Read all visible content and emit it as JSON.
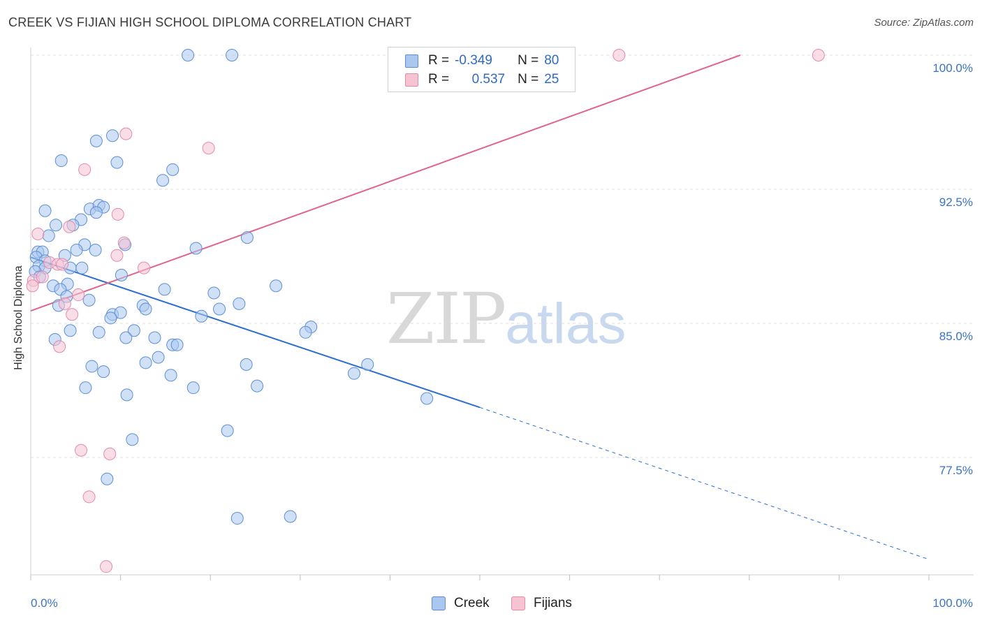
{
  "header": {
    "title": "CREEK VS FIJIAN HIGH SCHOOL DIPLOMA CORRELATION CHART",
    "source": "Source: ZipAtlas.com"
  },
  "watermark": {
    "part1": "ZIP",
    "part2": "atlas"
  },
  "legend": {
    "creek": {
      "r_label": "R =",
      "r_value": "-0.349",
      "n_label": "N =",
      "n_value": "80"
    },
    "fijians": {
      "r_label": "R =",
      "r_value": "0.537",
      "n_label": "N =",
      "n_value": "25"
    }
  },
  "bottom_legend": {
    "creek": "Creek",
    "fijians": "Fijians"
  },
  "colors": {
    "creek_fill": "#a9c7ef",
    "creek_stroke": "#5b8fd6",
    "creek_line": "#2a6fd0",
    "fijian_fill": "#f6c3d3",
    "fijian_stroke": "#e68aa8",
    "fijian_line": "#e0648c",
    "grid": "#dddddd",
    "axis_text": "#3a73c8"
  },
  "chart_data": {
    "type": "scatter",
    "title": "CREEK VS FIJIAN HIGH SCHOOL DIPLOMA CORRELATION CHART",
    "xlabel": "",
    "ylabel": "High School Diploma",
    "xlim": [
      0,
      100
    ],
    "ylim": [
      71.2,
      100.7
    ],
    "x_tick_labels": [
      "0.0%",
      "100.0%"
    ],
    "y_ticks": [
      77.5,
      85.0,
      92.5,
      100.0
    ],
    "y_tick_labels": [
      "77.5%",
      "85.0%",
      "92.5%",
      "100.0%"
    ],
    "grid": true,
    "legend_position": "top-center",
    "series": [
      {
        "name": "Creek",
        "r": -0.349,
        "n": 80,
        "trend": {
          "x0": 0,
          "y0": 88.7,
          "x1": 50,
          "y1": 80.3,
          "dashed_to_x": 100,
          "dashed_to_y": 71.8
        },
        "points": [
          [
            17.5,
            100.0
          ],
          [
            22.4,
            100.0
          ],
          [
            7.3,
            95.2
          ],
          [
            9.1,
            95.5
          ],
          [
            3.4,
            94.1
          ],
          [
            9.6,
            94.0
          ],
          [
            15.8,
            93.6
          ],
          [
            14.7,
            93.0
          ],
          [
            1.6,
            91.3
          ],
          [
            6.6,
            91.4
          ],
          [
            7.6,
            91.6
          ],
          [
            8.1,
            91.5
          ],
          [
            7.3,
            91.2
          ],
          [
            5.6,
            90.8
          ],
          [
            2.8,
            90.5
          ],
          [
            4.7,
            90.5
          ],
          [
            2.0,
            89.9
          ],
          [
            24.1,
            89.8
          ],
          [
            6.0,
            89.4
          ],
          [
            10.5,
            89.4
          ],
          [
            18.4,
            89.2
          ],
          [
            5.1,
            89.1
          ],
          [
            7.2,
            89.1
          ],
          [
            0.8,
            89.0
          ],
          [
            1.3,
            89.0
          ],
          [
            3.8,
            88.8
          ],
          [
            0.6,
            88.7
          ],
          [
            1.6,
            88.5
          ],
          [
            0.9,
            88.2
          ],
          [
            1.6,
            88.1
          ],
          [
            4.4,
            88.1
          ],
          [
            5.7,
            88.1
          ],
          [
            0.5,
            87.9
          ],
          [
            1.0,
            87.6
          ],
          [
            10.1,
            87.7
          ],
          [
            2.5,
            87.1
          ],
          [
            4.1,
            87.2
          ],
          [
            27.3,
            87.1
          ],
          [
            3.3,
            86.9
          ],
          [
            14.9,
            86.9
          ],
          [
            20.4,
            86.7
          ],
          [
            4.0,
            86.5
          ],
          [
            6.5,
            86.3
          ],
          [
            3.1,
            86.0
          ],
          [
            12.5,
            86.0
          ],
          [
            23.2,
            86.1
          ],
          [
            12.8,
            85.8
          ],
          [
            21.0,
            85.8
          ],
          [
            9.1,
            85.5
          ],
          [
            10.0,
            85.6
          ],
          [
            8.9,
            85.3
          ],
          [
            19.0,
            85.4
          ],
          [
            4.4,
            84.6
          ],
          [
            7.6,
            84.5
          ],
          [
            11.5,
            84.6
          ],
          [
            31.2,
            84.8
          ],
          [
            30.6,
            84.5
          ],
          [
            10.6,
            84.2
          ],
          [
            2.7,
            84.1
          ],
          [
            13.8,
            84.2
          ],
          [
            15.8,
            83.8
          ],
          [
            16.3,
            83.8
          ],
          [
            14.2,
            83.1
          ],
          [
            12.8,
            82.8
          ],
          [
            24.0,
            82.7
          ],
          [
            37.5,
            82.7
          ],
          [
            6.8,
            82.6
          ],
          [
            8.1,
            82.3
          ],
          [
            36.0,
            82.2
          ],
          [
            15.6,
            82.1
          ],
          [
            6.1,
            81.4
          ],
          [
            18.1,
            81.4
          ],
          [
            25.2,
            81.5
          ],
          [
            10.7,
            81.0
          ],
          [
            44.1,
            80.8
          ],
          [
            21.9,
            79.0
          ],
          [
            11.3,
            78.5
          ],
          [
            8.5,
            76.3
          ],
          [
            23.0,
            74.1
          ],
          [
            28.9,
            74.2
          ]
        ]
      },
      {
        "name": "Fijians",
        "r": 0.537,
        "n": 25,
        "trend": {
          "x0": 0,
          "y0": 85.7,
          "x1": 79,
          "y1": 100.0
        },
        "points": [
          [
            65.5,
            100.0
          ],
          [
            87.7,
            100.0
          ],
          [
            10.6,
            95.6
          ],
          [
            19.8,
            94.8
          ],
          [
            6.0,
            93.6
          ],
          [
            9.7,
            91.1
          ],
          [
            4.3,
            90.4
          ],
          [
            0.8,
            90.0
          ],
          [
            10.4,
            89.5
          ],
          [
            9.6,
            88.8
          ],
          [
            2.1,
            88.4
          ],
          [
            3.0,
            88.3
          ],
          [
            3.5,
            88.3
          ],
          [
            12.6,
            88.1
          ],
          [
            0.3,
            87.4
          ],
          [
            0.2,
            87.1
          ],
          [
            5.3,
            86.6
          ],
          [
            3.8,
            86.1
          ],
          [
            4.6,
            85.5
          ],
          [
            3.2,
            83.7
          ],
          [
            5.6,
            77.9
          ],
          [
            8.8,
            77.7
          ],
          [
            6.5,
            75.3
          ],
          [
            8.4,
            71.4
          ],
          [
            1.3,
            87.6
          ]
        ]
      }
    ]
  }
}
